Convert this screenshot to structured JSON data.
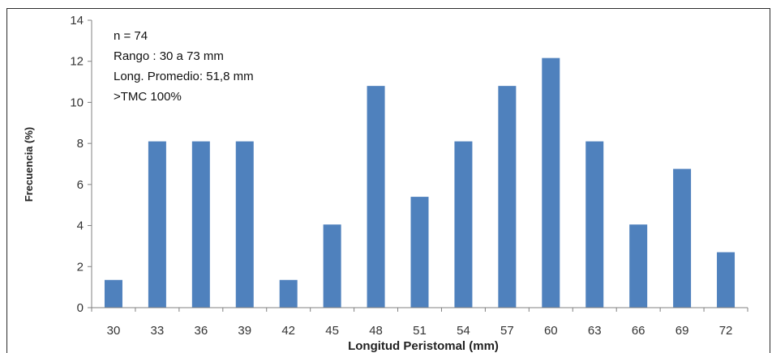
{
  "chart_data": {
    "type": "bar",
    "xlabel": "Longitud Peristomal (mm)",
    "ylabel": "Frecuencia (%)",
    "categories": [
      "30",
      "33",
      "36",
      "39",
      "42",
      "45",
      "48",
      "51",
      "54",
      "57",
      "60",
      "63",
      "66",
      "69",
      "72"
    ],
    "values": [
      1.35,
      8.1,
      8.1,
      8.1,
      1.35,
      4.05,
      10.8,
      5.4,
      8.1,
      10.8,
      12.16,
      8.1,
      4.05,
      6.76,
      2.7
    ],
    "ylim": [
      0,
      14
    ],
    "yticks": [
      "0",
      "2",
      "4",
      "6",
      "8",
      "10",
      "12",
      "14"
    ],
    "grid": false,
    "bar_color": "#4f81bd",
    "annotations": [
      "n = 74",
      "Rango : 30 a 73 mm",
      "Long. Promedio: 51,8 mm",
      ">TMC 100%"
    ]
  }
}
